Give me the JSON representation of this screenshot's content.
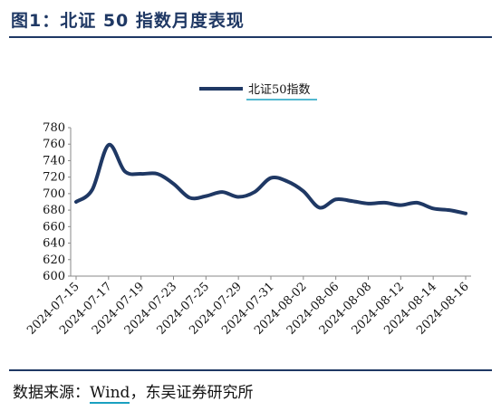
{
  "title": "图1：北证 50 指数月度表现",
  "source": {
    "prefix": "数据来源：",
    "wind": "Wind",
    "suffix": "，东吴证券研究所"
  },
  "colors": {
    "line": "#1f3864",
    "accent": "#1aa0c0"
  },
  "chart_data": {
    "type": "line",
    "title": "",
    "xlabel": "",
    "ylabel": "",
    "ylim": [
      600,
      780
    ],
    "yticks": [
      600,
      620,
      640,
      660,
      680,
      700,
      720,
      740,
      760,
      780
    ],
    "legend_position": "top",
    "grid": false,
    "x": [
      "2024-07-15",
      "2024-07-16",
      "2024-07-17",
      "2024-07-18",
      "2024-07-19",
      "2024-07-22",
      "2024-07-23",
      "2024-07-24",
      "2024-07-25",
      "2024-07-26",
      "2024-07-29",
      "2024-07-30",
      "2024-07-31",
      "2024-08-01",
      "2024-08-02",
      "2024-08-05",
      "2024-08-06",
      "2024-08-07",
      "2024-08-08",
      "2024-08-09",
      "2024-08-12",
      "2024-08-13",
      "2024-08-14",
      "2024-08-15",
      "2024-08-16"
    ],
    "xtick_labels": [
      "2024-07-15",
      "2024-07-17",
      "2024-07-19",
      "2024-07-23",
      "2024-07-25",
      "2024-07-29",
      "2024-07-31",
      "2024-08-02",
      "2024-08-06",
      "2024-08-08",
      "2024-08-12",
      "2024-08-14",
      "2024-08-16"
    ],
    "series": [
      {
        "name": "北证50指数",
        "values": [
          690,
          705,
          759,
          727,
          724,
          724,
          712,
          695,
          697,
          702,
          696,
          702,
          719,
          715,
          703,
          683,
          693,
          691,
          688,
          689,
          686,
          689,
          682,
          680,
          676
        ]
      }
    ]
  }
}
